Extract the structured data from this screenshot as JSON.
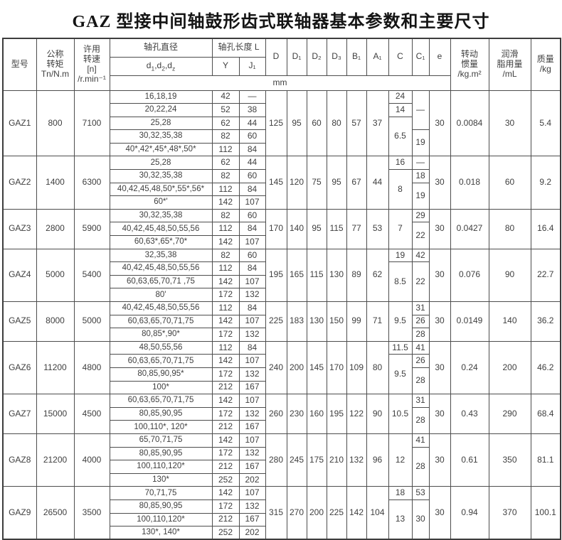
{
  "title": "GAZ 型接中间轴鼓形齿式联轴器基本参数和主要尺寸",
  "unit_band": "mm",
  "header": {
    "model": "型号",
    "torque": "公称\n转矩\nTn/N.m",
    "speed": "许用\n转速\n[n]\n/r.min⁻¹",
    "bore_dia": "轴孔直径",
    "bore_len": "轴孔长度 L",
    "d_parts": {
      "b1": "d",
      "s1": "1",
      "b2": ",d",
      "s2": "2",
      "b3": ",d",
      "s3": "z"
    },
    "y": "Y",
    "j1": "J₁",
    "dims": [
      "D",
      "D₁",
      "D₂",
      "D₃",
      "B₁",
      "A₁",
      "C",
      "C₁",
      "e"
    ],
    "inertia": "转动\n惯量\n/kg.m²",
    "grease": "润滑\n脂用量\n/mL",
    "mass": "质量\n/kg"
  },
  "models": [
    {
      "name": "GAZ1",
      "torque": "800",
      "speed": "7100",
      "bores": [
        {
          "d": "16,18,19",
          "y": "42",
          "j": "—"
        },
        {
          "d": "20,22,24",
          "y": "52",
          "j": "38"
        },
        {
          "d": "25,28",
          "y": "62",
          "j": "44"
        },
        {
          "d": "30,32,35,38",
          "y": "82",
          "j": "60"
        },
        {
          "d": "40*,42*,45*,48*,50*",
          "y": "112",
          "j": "84"
        }
      ],
      "D": "125",
      "D1": "95",
      "D2": "60",
      "D3": "80",
      "B1": "57",
      "A1": "37",
      "C": [
        {
          "v": "24",
          "span": 1
        },
        {
          "v": "14",
          "span": 1
        },
        {
          "v": "6.5",
          "span": 3
        }
      ],
      "C1": [
        {
          "v": "—",
          "span": 3
        },
        {
          "v": "19",
          "span": 2
        }
      ],
      "e": "30",
      "inertia": "0.0084",
      "grease": "30",
      "mass": "5.4"
    },
    {
      "name": "GAZ2",
      "torque": "1400",
      "speed": "6300",
      "bores": [
        {
          "d": "25,28",
          "y": "62",
          "j": "44"
        },
        {
          "d": "30,32,35,38",
          "y": "82",
          "j": "60"
        },
        {
          "d": "40,42,45,48,50*,55*,56*",
          "y": "112",
          "j": "84"
        },
        {
          "d": "60*'",
          "y": "142",
          "j": "107"
        }
      ],
      "D": "145",
      "D1": "120",
      "D2": "75",
      "D3": "95",
      "B1": "67",
      "A1": "44",
      "C": [
        {
          "v": "16",
          "span": 1
        },
        {
          "v": "8",
          "span": 3
        }
      ],
      "C1": [
        {
          "v": "—",
          "span": 1
        },
        {
          "v": "18",
          "span": 1
        },
        {
          "v": "19",
          "span": 2
        }
      ],
      "e": "30",
      "inertia": "0.018",
      "grease": "60",
      "mass": "9.2"
    },
    {
      "name": "GAZ3",
      "torque": "2800",
      "speed": "5900",
      "bores": [
        {
          "d": "30,32,35,38",
          "y": "82",
          "j": "60"
        },
        {
          "d": "40,42,45,48,50,55,56",
          "y": "112",
          "j": "84"
        },
        {
          "d": "60,63*,65*,70*",
          "y": "142",
          "j": "107"
        }
      ],
      "D": "170",
      "D1": "140",
      "D2": "95",
      "D3": "115",
      "B1": "77",
      "A1": "53",
      "C": [
        {
          "v": "7",
          "span": 3
        }
      ],
      "C1": [
        {
          "v": "29",
          "span": 1
        },
        {
          "v": "22",
          "span": 2
        }
      ],
      "e": "30",
      "inertia": "0.0427",
      "grease": "80",
      "mass": "16.4"
    },
    {
      "name": "GAZ4",
      "torque": "5000",
      "speed": "5400",
      "bores": [
        {
          "d": "32,35,38",
          "y": "82",
          "j": "60"
        },
        {
          "d": "40,42,45,48,50,55,56",
          "y": "112",
          "j": "84"
        },
        {
          "d": "60,63,65,70,71 ,75",
          "y": "142",
          "j": "107"
        },
        {
          "d": "80'",
          "y": "172",
          "j": "132"
        }
      ],
      "D": "195",
      "D1": "165",
      "D2": "115",
      "D3": "130",
      "B1": "89",
      "A1": "62",
      "C": [
        {
          "v": "19",
          "span": 1
        },
        {
          "v": "8.5",
          "span": 3
        }
      ],
      "C1": [
        {
          "v": "42",
          "span": 1
        },
        {
          "v": "22",
          "span": 3
        }
      ],
      "e": "30",
      "inertia": "0.076",
      "grease": "90",
      "mass": "22.7"
    },
    {
      "name": "GAZ5",
      "torque": "8000",
      "speed": "5000",
      "bores": [
        {
          "d": "40,42,45,48,50,55,56",
          "y": "112",
          "j": "84"
        },
        {
          "d": "60,63,65,70,71,75",
          "y": "142",
          "j": "107"
        },
        {
          "d": "80,85*,90*",
          "y": "172",
          "j": "132"
        }
      ],
      "D": "225",
      "D1": "183",
      "D2": "130",
      "D3": "150",
      "B1": "99",
      "A1": "71",
      "C": [
        {
          "v": "9.5",
          "span": 3
        }
      ],
      "C1": [
        {
          "v": "31",
          "span": 1
        },
        {
          "v": "26",
          "span": 1
        },
        {
          "v": "28",
          "span": 1
        }
      ],
      "e": "30",
      "inertia": "0.0149",
      "grease": "140",
      "mass": "36.2"
    },
    {
      "name": "GAZ6",
      "torque": "11200",
      "speed": "4800",
      "bores": [
        {
          "d": "48,50,55,56",
          "y": "112",
          "j": "84"
        },
        {
          "d": "60,63,65,70,71,75",
          "y": "142",
          "j": "107"
        },
        {
          "d": "80,85,90,95*",
          "y": "172",
          "j": "132"
        },
        {
          "d": "100*",
          "y": "212",
          "j": "167"
        }
      ],
      "D": "240",
      "D1": "200",
      "D2": "145",
      "D3": "170",
      "B1": "109",
      "A1": "80",
      "C": [
        {
          "v": "11.5",
          "span": 1
        },
        {
          "v": "9.5",
          "span": 3
        }
      ],
      "C1": [
        {
          "v": "41",
          "span": 1
        },
        {
          "v": "26",
          "span": 1
        },
        {
          "v": "28",
          "span": 2
        }
      ],
      "e": "30",
      "inertia": "0.24",
      "grease": "200",
      "mass": "46.2"
    },
    {
      "name": "GAZ7",
      "torque": "15000",
      "speed": "4500",
      "bores": [
        {
          "d": "60,63,65,70,71,75",
          "y": "142",
          "j": "107"
        },
        {
          "d": "80,85,90,95",
          "y": "172",
          "j": "132"
        },
        {
          "d": "100,110*,  120*",
          "y": "212",
          "j": "167"
        }
      ],
      "D": "260",
      "D1": "230",
      "D2": "160",
      "D3": "195",
      "B1": "122",
      "A1": "90",
      "C": [
        {
          "v": "10.5",
          "span": 3
        }
      ],
      "C1": [
        {
          "v": "31",
          "span": 1
        },
        {
          "v": "28",
          "span": 2
        }
      ],
      "e": "30",
      "inertia": "0.43",
      "grease": "290",
      "mass": "68.4"
    },
    {
      "name": "GAZ8",
      "torque": "21200",
      "speed": "4000",
      "bores": [
        {
          "d": "65,70,71,75",
          "y": "142",
          "j": "107"
        },
        {
          "d": "80,85,90,95",
          "y": "172",
          "j": "132"
        },
        {
          "d": "100,110,120*",
          "y": "212",
          "j": "167"
        },
        {
          "d": "130*",
          "y": "252",
          "j": "202"
        }
      ],
      "D": "280",
      "D1": "245",
      "D2": "175",
      "D3": "210",
      "B1": "132",
      "A1": "96",
      "C": [
        {
          "v": "12",
          "span": 4
        }
      ],
      "C1": [
        {
          "v": "41",
          "span": 1
        },
        {
          "v": "28",
          "span": 3
        }
      ],
      "e": "30",
      "inertia": "0.61",
      "grease": "350",
      "mass": "81.1"
    },
    {
      "name": "GAZ9",
      "torque": "26500",
      "speed": "3500",
      "bores": [
        {
          "d": "70,71,75",
          "y": "142",
          "j": "107"
        },
        {
          "d": "80,85,90,95",
          "y": "172",
          "j": "132"
        },
        {
          "d": "100,110,120*",
          "y": "212",
          "j": "167"
        },
        {
          "d": "130*, 140*",
          "y": "252",
          "j": "202"
        }
      ],
      "D": "315",
      "D1": "270",
      "D2": "200",
      "D3": "225",
      "B1": "142",
      "A1": "104",
      "C": [
        {
          "v": "18",
          "span": 1
        },
        {
          "v": "13",
          "span": 3
        }
      ],
      "C1": [
        {
          "v": "53",
          "span": 1
        },
        {
          "v": "30",
          "span": 3
        }
      ],
      "e": "30",
      "inertia": "0.94",
      "grease": "370",
      "mass": "100.1"
    }
  ]
}
